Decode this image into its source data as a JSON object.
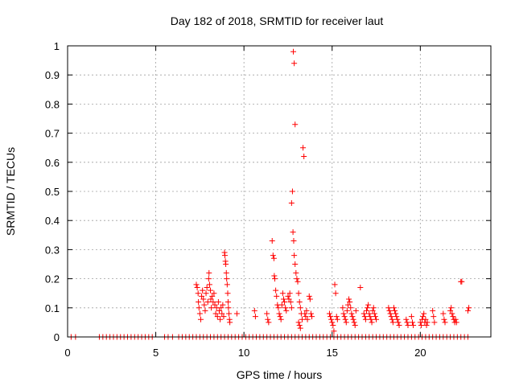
{
  "chart_data": {
    "type": "scatter",
    "title": "Day 182 of 2018, SRMTID for receiver laut",
    "xlabel": "GPS time / hours",
    "ylabel": "SRMTID / TECUs",
    "xlim": [
      0,
      24
    ],
    "ylim": [
      0,
      1
    ],
    "xticks": [
      0,
      5,
      10,
      15,
      20
    ],
    "xtick_labels": [
      "0",
      "5",
      "10",
      "15",
      "20"
    ],
    "yticks": [
      0,
      0.1,
      0.2,
      0.3,
      0.4,
      0.5,
      0.6,
      0.7,
      0.8,
      0.9,
      1
    ],
    "ytick_labels": [
      "0",
      "0.1",
      "0.2",
      "0.3",
      "0.4",
      "0.5",
      "0.6",
      "0.7",
      "0.8",
      "0.9",
      "1"
    ],
    "grid": true,
    "marker": "+",
    "color": "#ff0000",
    "series": [
      {
        "name": "SRMTID",
        "points": [
          [
            0.2,
            0
          ],
          [
            0.45,
            0
          ],
          [
            1.8,
            0
          ],
          [
            2.0,
            0
          ],
          [
            2.2,
            0
          ],
          [
            2.4,
            0
          ],
          [
            2.6,
            0
          ],
          [
            2.8,
            0
          ],
          [
            3.0,
            0
          ],
          [
            3.2,
            0
          ],
          [
            3.4,
            0
          ],
          [
            3.6,
            0
          ],
          [
            3.8,
            0
          ],
          [
            4.0,
            0
          ],
          [
            4.2,
            0
          ],
          [
            4.4,
            0
          ],
          [
            4.6,
            0
          ],
          [
            4.8,
            0
          ],
          [
            5.5,
            0
          ],
          [
            5.7,
            0
          ],
          [
            5.95,
            0
          ],
          [
            6.3,
            0
          ],
          [
            6.5,
            0
          ],
          [
            6.7,
            0
          ],
          [
            6.9,
            0
          ],
          [
            7.1,
            0
          ],
          [
            7.3,
            0
          ],
          [
            7.5,
            0
          ],
          [
            7.7,
            0
          ],
          [
            7.9,
            0
          ],
          [
            8.1,
            0
          ],
          [
            8.3,
            0
          ],
          [
            8.5,
            0
          ],
          [
            8.7,
            0
          ],
          [
            8.9,
            0
          ],
          [
            9.1,
            0
          ],
          [
            9.3,
            0
          ],
          [
            9.5,
            0
          ],
          [
            9.7,
            0
          ],
          [
            9.9,
            0
          ],
          [
            10.1,
            0
          ],
          [
            10.3,
            0
          ],
          [
            10.5,
            0
          ],
          [
            10.7,
            0
          ],
          [
            10.9,
            0
          ],
          [
            11.1,
            0
          ],
          [
            11.3,
            0
          ],
          [
            11.5,
            0
          ],
          [
            11.7,
            0
          ],
          [
            11.9,
            0
          ],
          [
            12.1,
            0
          ],
          [
            12.3,
            0
          ],
          [
            12.5,
            0
          ],
          [
            12.7,
            0
          ],
          [
            12.9,
            0
          ],
          [
            13.1,
            0
          ],
          [
            13.3,
            0
          ],
          [
            13.5,
            0
          ],
          [
            13.7,
            0
          ],
          [
            13.9,
            0
          ],
          [
            14.1,
            0
          ],
          [
            14.3,
            0
          ],
          [
            14.5,
            0
          ],
          [
            14.7,
            0
          ],
          [
            14.9,
            0
          ],
          [
            15.1,
            0
          ],
          [
            15.3,
            0
          ],
          [
            15.5,
            0
          ],
          [
            15.7,
            0
          ],
          [
            15.9,
            0
          ],
          [
            16.1,
            0
          ],
          [
            16.3,
            0
          ],
          [
            16.5,
            0
          ],
          [
            16.7,
            0
          ],
          [
            16.9,
            0
          ],
          [
            17.1,
            0
          ],
          [
            17.3,
            0
          ],
          [
            17.5,
            0
          ],
          [
            17.7,
            0
          ],
          [
            17.9,
            0
          ],
          [
            18.1,
            0
          ],
          [
            18.3,
            0
          ],
          [
            18.5,
            0
          ],
          [
            18.7,
            0
          ],
          [
            18.9,
            0
          ],
          [
            19.1,
            0
          ],
          [
            19.3,
            0
          ],
          [
            19.5,
            0
          ],
          [
            19.7,
            0
          ],
          [
            19.9,
            0
          ],
          [
            20.1,
            0
          ],
          [
            20.3,
            0
          ],
          [
            20.5,
            0
          ],
          [
            20.7,
            0
          ],
          [
            20.9,
            0
          ],
          [
            21.1,
            0
          ],
          [
            21.3,
            0
          ],
          [
            21.5,
            0
          ],
          [
            21.7,
            0
          ],
          [
            21.9,
            0
          ],
          [
            22.1,
            0
          ],
          [
            22.3,
            0
          ],
          [
            22.5,
            0
          ],
          [
            22.7,
            0
          ],
          [
            7.3,
            0.18
          ],
          [
            7.35,
            0.17
          ],
          [
            7.4,
            0.15
          ],
          [
            7.42,
            0.12
          ],
          [
            7.45,
            0.1
          ],
          [
            7.5,
            0.08
          ],
          [
            7.55,
            0.06
          ],
          [
            7.6,
            0.14
          ],
          [
            7.65,
            0.16
          ],
          [
            7.7,
            0.13
          ],
          [
            7.75,
            0.11
          ],
          [
            7.8,
            0.09
          ],
          [
            7.85,
            0.15
          ],
          [
            7.9,
            0.17
          ],
          [
            7.95,
            0.12
          ],
          [
            8.0,
            0.2
          ],
          [
            8.02,
            0.22
          ],
          [
            8.05,
            0.18
          ],
          [
            8.1,
            0.16
          ],
          [
            8.12,
            0.13
          ],
          [
            8.15,
            0.1
          ],
          [
            8.2,
            0.14
          ],
          [
            8.25,
            0.12
          ],
          [
            8.3,
            0.15
          ],
          [
            8.35,
            0.11
          ],
          [
            8.4,
            0.08
          ],
          [
            8.45,
            0.1
          ],
          [
            8.5,
            0.07
          ],
          [
            8.55,
            0.12
          ],
          [
            8.6,
            0.09
          ],
          [
            8.65,
            0.06
          ],
          [
            8.7,
            0.1
          ],
          [
            8.75,
            0.08
          ],
          [
            8.8,
            0.11
          ],
          [
            8.85,
            0.07
          ],
          [
            8.9,
            0.29
          ],
          [
            8.92,
            0.28
          ],
          [
            8.95,
            0.26
          ],
          [
            8.97,
            0.25
          ],
          [
            9.0,
            0.22
          ],
          [
            9.02,
            0.2
          ],
          [
            9.05,
            0.18
          ],
          [
            9.08,
            0.15
          ],
          [
            9.1,
            0.12
          ],
          [
            9.12,
            0.1
          ],
          [
            9.15,
            0.08
          ],
          [
            9.18,
            0.06
          ],
          [
            9.2,
            0.05
          ],
          [
            9.6,
            0.08
          ],
          [
            10.6,
            0.09
          ],
          [
            10.65,
            0.07
          ],
          [
            11.3,
            0.08
          ],
          [
            11.35,
            0.06
          ],
          [
            11.4,
            0.05
          ],
          [
            11.6,
            0.33
          ],
          [
            11.65,
            0.28
          ],
          [
            11.7,
            0.27
          ],
          [
            11.72,
            0.21
          ],
          [
            11.75,
            0.2
          ],
          [
            11.8,
            0.16
          ],
          [
            11.85,
            0.14
          ],
          [
            11.9,
            0.11
          ],
          [
            11.95,
            0.1
          ],
          [
            12.0,
            0.08
          ],
          [
            12.05,
            0.07
          ],
          [
            12.1,
            0.06
          ],
          [
            12.15,
            0.11
          ],
          [
            12.2,
            0.15
          ],
          [
            12.25,
            0.13
          ],
          [
            12.3,
            0.12
          ],
          [
            12.35,
            0.1
          ],
          [
            12.4,
            0.09
          ],
          [
            12.5,
            0.14
          ],
          [
            12.55,
            0.13
          ],
          [
            12.6,
            0.15
          ],
          [
            12.65,
            0.12
          ],
          [
            12.7,
            0.1
          ],
          [
            12.8,
            0.98
          ],
          [
            12.85,
            0.94
          ],
          [
            12.9,
            0.73
          ],
          [
            12.75,
            0.5
          ],
          [
            12.7,
            0.46
          ],
          [
            12.78,
            0.36
          ],
          [
            12.82,
            0.33
          ],
          [
            12.85,
            0.28
          ],
          [
            12.9,
            0.25
          ],
          [
            12.95,
            0.22
          ],
          [
            13.0,
            0.2
          ],
          [
            13.05,
            0.19
          ],
          [
            13.1,
            0.15
          ],
          [
            13.15,
            0.12
          ],
          [
            13.2,
            0.1
          ],
          [
            13.25,
            0.08
          ],
          [
            13.1,
            0.05
          ],
          [
            13.15,
            0.04
          ],
          [
            13.2,
            0.03
          ],
          [
            13.3,
            0.06
          ],
          [
            13.35,
            0.65
          ],
          [
            13.4,
            0.62
          ],
          [
            13.45,
            0.08
          ],
          [
            13.5,
            0.07
          ],
          [
            13.55,
            0.09
          ],
          [
            13.6,
            0.06
          ],
          [
            13.7,
            0.14
          ],
          [
            13.75,
            0.13
          ],
          [
            13.8,
            0.08
          ],
          [
            13.85,
            0.07
          ],
          [
            14.85,
            0.08
          ],
          [
            14.9,
            0.07
          ],
          [
            14.95,
            0.06
          ],
          [
            15.0,
            0.05
          ],
          [
            15.05,
            0.04
          ],
          [
            15.1,
            0.02
          ],
          [
            15.15,
            0.18
          ],
          [
            15.2,
            0.15
          ],
          [
            15.25,
            0.07
          ],
          [
            15.3,
            0.06
          ],
          [
            15.6,
            0.1
          ],
          [
            15.65,
            0.08
          ],
          [
            15.7,
            0.07
          ],
          [
            15.75,
            0.06
          ],
          [
            15.8,
            0.05
          ],
          [
            15.85,
            0.09
          ],
          [
            15.9,
            0.11
          ],
          [
            15.95,
            0.13
          ],
          [
            16.0,
            0.12
          ],
          [
            16.05,
            0.1
          ],
          [
            16.1,
            0.08
          ],
          [
            16.15,
            0.07
          ],
          [
            16.2,
            0.06
          ],
          [
            16.25,
            0.05
          ],
          [
            16.3,
            0.04
          ],
          [
            16.35,
            0.09
          ],
          [
            16.6,
            0.17
          ],
          [
            16.8,
            0.08
          ],
          [
            16.85,
            0.07
          ],
          [
            16.9,
            0.06
          ],
          [
            16.95,
            0.09
          ],
          [
            17.0,
            0.1
          ],
          [
            17.05,
            0.11
          ],
          [
            17.1,
            0.08
          ],
          [
            17.15,
            0.07
          ],
          [
            17.2,
            0.06
          ],
          [
            17.25,
            0.05
          ],
          [
            17.3,
            0.09
          ],
          [
            17.35,
            0.1
          ],
          [
            17.4,
            0.08
          ],
          [
            17.45,
            0.07
          ],
          [
            17.5,
            0.06
          ],
          [
            18.2,
            0.1
          ],
          [
            18.25,
            0.09
          ],
          [
            18.3,
            0.08
          ],
          [
            18.35,
            0.07
          ],
          [
            18.4,
            0.06
          ],
          [
            18.45,
            0.05
          ],
          [
            18.5,
            0.1
          ],
          [
            18.55,
            0.09
          ],
          [
            18.6,
            0.08
          ],
          [
            18.65,
            0.07
          ],
          [
            18.7,
            0.06
          ],
          [
            18.75,
            0.05
          ],
          [
            18.8,
            0.04
          ],
          [
            19.2,
            0.06
          ],
          [
            19.25,
            0.05
          ],
          [
            19.3,
            0.04
          ],
          [
            19.5,
            0.07
          ],
          [
            19.55,
            0.05
          ],
          [
            19.6,
            0.04
          ],
          [
            20.0,
            0.05
          ],
          [
            20.05,
            0.04
          ],
          [
            20.1,
            0.06
          ],
          [
            20.15,
            0.07
          ],
          [
            20.2,
            0.08
          ],
          [
            20.25,
            0.05
          ],
          [
            20.3,
            0.06
          ],
          [
            20.35,
            0.04
          ],
          [
            20.4,
            0.05
          ],
          [
            20.7,
            0.09
          ],
          [
            20.75,
            0.07
          ],
          [
            20.8,
            0.05
          ],
          [
            21.3,
            0.08
          ],
          [
            21.35,
            0.06
          ],
          [
            21.4,
            0.05
          ],
          [
            21.7,
            0.09
          ],
          [
            21.75,
            0.1
          ],
          [
            21.8,
            0.08
          ],
          [
            21.85,
            0.07
          ],
          [
            21.9,
            0.06
          ],
          [
            21.95,
            0.05
          ],
          [
            22.0,
            0.06
          ],
          [
            22.05,
            0.05
          ],
          [
            22.3,
            0.19
          ],
          [
            22.35,
            0.19
          ],
          [
            22.7,
            0.09
          ],
          [
            22.75,
            0.1
          ]
        ]
      }
    ]
  }
}
